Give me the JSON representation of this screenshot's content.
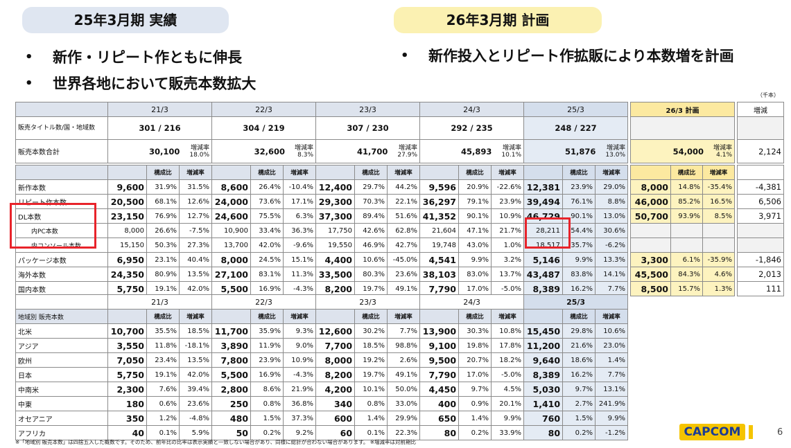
{
  "headers": {
    "left": "25年3月期 実績",
    "right": "26年3月期 計画"
  },
  "bullets_left": [
    "新作・リピート作ともに伸長",
    "世界各地において販売本数拡大"
  ],
  "bullets_right": [
    "新作投入とリピート作拡販により本数増を計画"
  ],
  "bullet_char": "•",
  "unit": "（千本）",
  "table1": {
    "years": [
      "21/3",
      "22/3",
      "23/3",
      "24/3",
      "25/3"
    ],
    "plan_header": "26/3 計画",
    "diff_header": "増減",
    "titles_label": "販売タイトル数/国・地域数",
    "titles": [
      "301 / 216",
      "304 / 219",
      "307 / 230",
      "292 / 235",
      "248 / 227"
    ],
    "total_label": "販売本数合計",
    "totals": [
      {
        "value": "30,100",
        "rate_label": "増減率",
        "rate": "18.0%"
      },
      {
        "value": "32,600",
        "rate_label": "増減率",
        "rate": "8.3%"
      },
      {
        "value": "41,700",
        "rate_label": "増減率",
        "rate": "27.9%"
      },
      {
        "value": "45,893",
        "rate_label": "増減率",
        "rate": "10.1%"
      },
      {
        "value": "51,876",
        "rate_label": "増減率",
        "rate": "13.0%"
      }
    ],
    "plan_total": {
      "value": "54,000",
      "rate_label": "増減率",
      "rate": "4.1%"
    },
    "diff_total": "2,124"
  },
  "table2": {
    "sub_a": "構成比",
    "sub_b": "増減率",
    "rows": [
      {
        "label": "新作本数",
        "cells": [
          "9,600",
          "31.9%",
          "31.5%",
          "8,600",
          "26.4%",
          "-10.4%",
          "12,400",
          "29.7%",
          "44.2%",
          "9,596",
          "20.9%",
          "-22.6%",
          "12,381",
          "23.9%",
          "29.0%"
        ],
        "plan": [
          "8,000",
          "14.8%",
          "-35.4%"
        ],
        "diff": "-4,381"
      },
      {
        "label": "リピート作本数",
        "cells": [
          "20,500",
          "68.1%",
          "12.6%",
          "24,000",
          "73.6%",
          "17.1%",
          "29,300",
          "70.3%",
          "22.1%",
          "36,297",
          "79.1%",
          "23.9%",
          "39,494",
          "76.1%",
          "8.8%"
        ],
        "plan": [
          "46,000",
          "85.2%",
          "16.5%"
        ],
        "diff": "6,506"
      },
      {
        "label": "DL本数",
        "cells": [
          "23,150",
          "76.9%",
          "12.7%",
          "24,600",
          "75.5%",
          "6.3%",
          "37,300",
          "89.4%",
          "51.6%",
          "41,352",
          "90.1%",
          "10.9%",
          "46,729",
          "90.1%",
          "13.0%"
        ],
        "plan": [
          "50,700",
          "93.9%",
          "8.5%"
        ],
        "diff": "3,971"
      },
      {
        "label": "内PC本数",
        "cells": [
          "8,000",
          "26.6%",
          "-7.5%",
          "10,900",
          "33.4%",
          "36.3%",
          "17,750",
          "42.6%",
          "62.8%",
          "21,604",
          "47.1%",
          "21.7%",
          "28,211",
          "54.4%",
          "30.6%"
        ],
        "plan": [
          "",
          "",
          ""
        ],
        "diff": ""
      },
      {
        "label": "内コンソール本数",
        "cells": [
          "15,150",
          "50.3%",
          "27.3%",
          "13,700",
          "42.0%",
          "-9.6%",
          "19,550",
          "46.9%",
          "42.7%",
          "19,748",
          "43.0%",
          "1.0%",
          "18,517",
          "35.7%",
          "-6.2%"
        ],
        "plan": [
          "",
          "",
          ""
        ],
        "diff": ""
      },
      {
        "label": "パッケージ本数",
        "cells": [
          "6,950",
          "23.1%",
          "40.4%",
          "8,000",
          "24.5%",
          "15.1%",
          "4,400",
          "10.6%",
          "-45.0%",
          "4,541",
          "9.9%",
          "3.2%",
          "5,146",
          "9.9%",
          "13.3%"
        ],
        "plan": [
          "3,300",
          "6.1%",
          "-35.9%"
        ],
        "diff": "-1,846"
      },
      {
        "label": "海外本数",
        "cells": [
          "24,350",
          "80.9%",
          "13.5%",
          "27,100",
          "83.1%",
          "11.3%",
          "33,500",
          "80.3%",
          "23.6%",
          "38,103",
          "83.0%",
          "13.7%",
          "43,487",
          "83.8%",
          "14.1%"
        ],
        "plan": [
          "45,500",
          "84.3%",
          "4.6%"
        ],
        "diff": "2,013"
      },
      {
        "label": "国内本数",
        "cells": [
          "5,750",
          "19.1%",
          "42.0%",
          "5,500",
          "16.9%",
          "-4.3%",
          "8,200",
          "19.7%",
          "49.1%",
          "7,790",
          "17.0%",
          "-5.0%",
          "8,389",
          "16.2%",
          "7.7%"
        ],
        "plan": [
          "8,500",
          "15.7%",
          "1.3%"
        ],
        "diff": "111"
      }
    ]
  },
  "table3": {
    "years": [
      "21/3",
      "22/3",
      "23/3",
      "24/3",
      "25/3"
    ],
    "region_label": "地域別 販売本数",
    "sub_a": "構成比",
    "sub_b": "増減率",
    "rows": [
      {
        "label": "北米",
        "cells": [
          "10,700",
          "35.5%",
          "18.5%",
          "11,700",
          "35.9%",
          "9.3%",
          "12,600",
          "30.2%",
          "7.7%",
          "13,900",
          "30.3%",
          "10.8%",
          "15,450",
          "29.8%",
          "10.6%"
        ]
      },
      {
        "label": "アジア",
        "cells": [
          "3,550",
          "11.8%",
          "-18.1%",
          "3,890",
          "11.9%",
          "9.0%",
          "7,700",
          "18.5%",
          "98.8%",
          "9,100",
          "19.8%",
          "17.8%",
          "11,200",
          "21.6%",
          "23.0%"
        ]
      },
      {
        "label": "欧州",
        "cells": [
          "7,050",
          "23.4%",
          "13.5%",
          "7,800",
          "23.9%",
          "10.9%",
          "8,000",
          "19.2%",
          "2.6%",
          "9,500",
          "20.7%",
          "18.2%",
          "9,640",
          "18.6%",
          "1.4%"
        ]
      },
      {
        "label": "日本",
        "cells": [
          "5,750",
          "19.1%",
          "42.0%",
          "5,500",
          "16.9%",
          "-4.3%",
          "8,200",
          "19.7%",
          "49.1%",
          "7,790",
          "17.0%",
          "-5.0%",
          "8,389",
          "16.2%",
          "7.7%"
        ]
      },
      {
        "label": "中南米",
        "cells": [
          "2,300",
          "7.6%",
          "39.4%",
          "2,800",
          "8.6%",
          "21.9%",
          "4,200",
          "10.1%",
          "50.0%",
          "4,450",
          "9.7%",
          "4.5%",
          "5,030",
          "9.7%",
          "13.1%"
        ]
      },
      {
        "label": "中東",
        "cells": [
          "180",
          "0.6%",
          "23.6%",
          "250",
          "0.8%",
          "36.8%",
          "340",
          "0.8%",
          "33.0%",
          "400",
          "0.9%",
          "20.1%",
          "1,410",
          "2.7%",
          "241.9%"
        ]
      },
      {
        "label": "オセアニア",
        "cells": [
          "350",
          "1.2%",
          "-4.8%",
          "480",
          "1.5%",
          "37.3%",
          "600",
          "1.4%",
          "29.9%",
          "650",
          "1.4%",
          "9.9%",
          "760",
          "1.5%",
          "9.9%"
        ]
      },
      {
        "label": "アフリカ",
        "cells": [
          "40",
          "0.1%",
          "5.9%",
          "50",
          "0.2%",
          "9.2%",
          "60",
          "0.1%",
          "22.3%",
          "80",
          "0.2%",
          "33.9%",
          "80",
          "0.2%",
          "-1.2%"
        ]
      }
    ]
  },
  "logo": "CAPCOM",
  "page_number": "6",
  "footnote": "※「地域別 販売本数」は四捨五入した概数です。そのため、前年比の比率は表示実績と一致しない場合があり、同様に総計が合わない場合があります。 ※増減率は対前期比",
  "colors": {
    "actual_header": "#dfe6f1",
    "plan_header": "#fbf1b2",
    "highlight_border": "#e8232a",
    "logo_bg": "#f5c400",
    "logo_text": "#1c3c95"
  }
}
